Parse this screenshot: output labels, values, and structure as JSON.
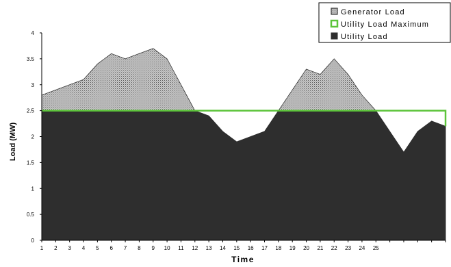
{
  "chart_data": {
    "type": "area",
    "xlabel": "Time",
    "ylabel": "Load (MW)",
    "ylim": [
      0,
      4
    ],
    "xlim": [
      1,
      30
    ],
    "y_ticks": [
      "0",
      "0.5",
      "1",
      "1.5",
      "2",
      "2.5",
      "3",
      "3.5",
      "4"
    ],
    "x_ticks": [
      "1",
      "2",
      "3",
      "4",
      "5",
      "6",
      "7",
      "8",
      "9",
      "10",
      "11",
      "12",
      "13",
      "14",
      "15",
      "16",
      "17",
      "18",
      "19",
      "20",
      "21",
      "22",
      "23",
      "24",
      "25"
    ],
    "x": [
      1,
      2,
      3,
      4,
      5,
      6,
      7,
      8,
      9,
      10,
      11,
      12,
      13,
      14,
      15,
      16,
      17,
      18,
      19,
      20,
      21,
      22,
      23,
      24,
      25,
      26,
      27,
      28,
      29,
      30
    ],
    "series": [
      {
        "name": "Generator Load",
        "values": [
          2.8,
          2.9,
          3.0,
          3.1,
          3.4,
          3.6,
          3.5,
          3.6,
          3.7,
          3.5,
          3.0,
          2.5,
          2.4,
          2.1,
          1.9,
          2.0,
          2.1,
          2.5,
          2.9,
          3.3,
          3.2,
          3.5,
          3.2,
          2.8,
          2.5,
          2.1,
          1.7,
          2.1,
          2.3,
          2.2
        ],
        "color": "#b0b0b0"
      },
      {
        "name": "Utility Load Maximum",
        "values": [
          2.5,
          2.5,
          2.5,
          2.5,
          2.5,
          2.5,
          2.5,
          2.5,
          2.5,
          2.5,
          2.5,
          2.5,
          2.5,
          2.5,
          2.5,
          2.5,
          2.5,
          2.5,
          2.5,
          2.5,
          2.5,
          2.5,
          2.5,
          2.5,
          2.5,
          2.5,
          2.5,
          2.5,
          2.5,
          2.5
        ],
        "color": "#5cc43a"
      },
      {
        "name": "Utility Load",
        "values": [
          2.5,
          2.5,
          2.5,
          2.5,
          2.5,
          2.5,
          2.5,
          2.5,
          2.5,
          2.5,
          2.5,
          2.5,
          2.4,
          2.1,
          1.9,
          2.0,
          2.1,
          2.5,
          2.5,
          2.5,
          2.5,
          2.5,
          2.5,
          2.5,
          2.5,
          2.1,
          1.7,
          2.1,
          2.3,
          2.2
        ],
        "color": "#2e2e2e"
      }
    ],
    "legend": {
      "placement": "top-right",
      "items": [
        "Generator Load",
        "Utility Load Maximum",
        "Utility Load"
      ]
    },
    "grid": false
  }
}
